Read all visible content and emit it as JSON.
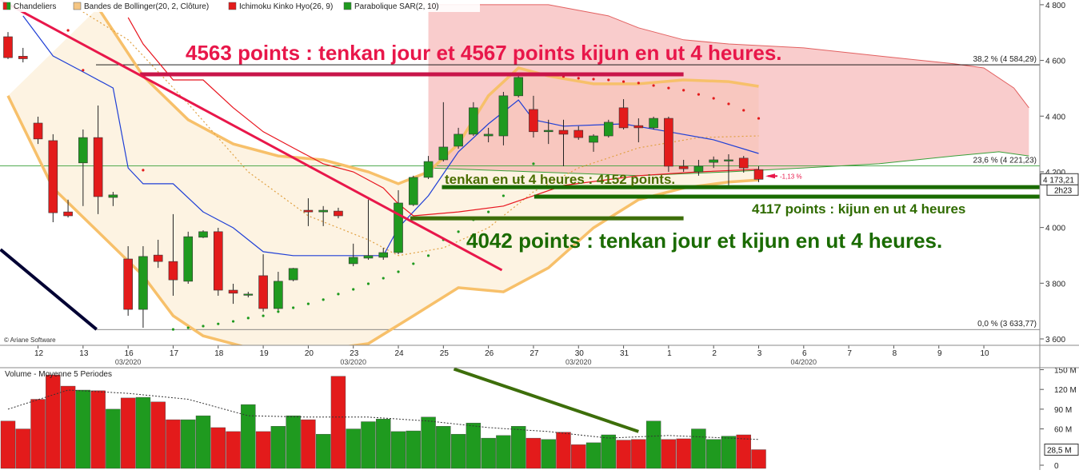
{
  "chart_data": [
    {
      "type": "candlestick",
      "legend": [
        {
          "name": "Chandeliers",
          "color": "#e31b1b"
        },
        {
          "name": "Bandes de Bollinger(20, 2, Clôture)",
          "color": "#f5c684"
        },
        {
          "name": "Ichimoku Kinko Hyo(26, 9)",
          "color": "#e31b1b"
        },
        {
          "name": "Parabolique SAR(2, 10)",
          "color": "#1f9a1f"
        }
      ],
      "copyright": "© Ariane Software",
      "categories": [
        null,
        null,
        "12",
        null,
        null,
        "13",
        null,
        null,
        "16",
        null,
        null,
        "17",
        null,
        null,
        "18",
        null,
        null,
        "19",
        null,
        null,
        "20",
        null,
        null,
        "23",
        null,
        null,
        "24",
        null,
        null,
        "25",
        null,
        null,
        "26",
        null,
        null,
        "27",
        null,
        null,
        "30",
        null,
        null,
        "31",
        null,
        null,
        "1",
        null,
        null,
        "2",
        null,
        null,
        "3",
        null,
        null,
        "6",
        null,
        null,
        "7",
        null,
        null,
        "8",
        null,
        null,
        "9",
        null,
        null,
        "10",
        null,
        null,
        null
      ],
      "month_labels": [
        {
          "category": 8,
          "label": "03/2020"
        },
        {
          "category": 23,
          "label": "03/2020"
        },
        {
          "category": 38,
          "label": "03/2020"
        },
        {
          "category": 53,
          "label": "04/2020"
        }
      ],
      "open": [
        4685,
        4615,
        4375,
        4312,
        4056,
        4232,
        4323,
        4108,
        3887,
        3706,
        3901,
        3878,
        3807,
        3965,
        3985,
        3775,
        3758,
        3827,
        3709,
        3812,
        4062,
        4056,
        4059,
        3870,
        3890,
        3893,
        3910,
        4082,
        4180,
        4243,
        4292,
        4335,
        4329,
        4329,
        4473,
        4424,
        4344,
        4349,
        4349,
        4306,
        4329,
        4430,
        4366,
        4358,
        4392,
        4220,
        4200,
        4234,
        4240,
        4249,
        4208,
        null,
        null,
        null,
        null,
        null,
        null,
        null,
        null,
        null,
        null,
        null,
        null,
        null,
        null,
        null,
        null,
        null,
        null
      ],
      "high": [
        4702,
        4645,
        4398,
        4335,
        4100,
        4352,
        4438,
        4128,
        3933,
        3933,
        3956,
        4048,
        3985,
        3990,
        3999,
        3798,
        3769,
        3904,
        3841,
        3855,
        4105,
        4077,
        4071,
        3942,
        4100,
        3927,
        4134,
        4186,
        4257,
        4450,
        4358,
        4450,
        4358,
        4487,
        4544,
        4473,
        4387,
        4387,
        4364,
        4335,
        4387,
        4461,
        4392,
        4398,
        4398,
        4243,
        4243,
        4255,
        4263,
        4257,
        4220,
        null,
        null,
        null,
        null,
        null,
        null,
        null,
        null,
        null,
        null,
        null,
        null,
        null,
        null,
        null,
        null,
        null,
        null
      ],
      "low": [
        4605,
        4593,
        4300,
        4019,
        4036,
        4077,
        4048,
        4077,
        3683,
        3640,
        3855,
        3755,
        3798,
        3962,
        3755,
        3726,
        3749,
        3698,
        3703,
        3807,
        4005,
        4005,
        4033,
        3861,
        3884,
        3884,
        3904,
        4077,
        4174,
        4237,
        4283,
        4329,
        4306,
        4295,
        4467,
        4323,
        4300,
        4220,
        4315,
        4272,
        4323,
        4352,
        4306,
        4352,
        4200,
        4200,
        4186,
        4214,
        4151,
        4197,
        4163,
        null,
        null,
        null,
        null,
        null,
        null,
        null,
        null,
        null,
        null,
        null,
        null,
        null,
        null,
        null,
        null,
        null,
        null
      ],
      "close": [
        4610,
        4606,
        4318,
        4053,
        4042,
        4323,
        4111,
        4117,
        3706,
        3896,
        3878,
        3812,
        3967,
        3985,
        3775,
        3764,
        3761,
        3709,
        3807,
        3853,
        4056,
        4062,
        4042,
        3893,
        3899,
        3910,
        4088,
        4180,
        4237,
        4289,
        4335,
        4430,
        4335,
        4473,
        4539,
        4344,
        4349,
        4335,
        4323,
        4329,
        4378,
        4358,
        4358,
        4392,
        4220,
        4211,
        4220,
        4243,
        4243,
        4214,
        4173.21,
        null,
        null,
        null,
        null,
        null,
        null,
        null,
        null,
        null,
        null,
        null,
        null,
        null,
        null,
        null,
        null,
        null,
        null
      ],
      "up_color": "#1f9a1f",
      "down_color": "#e31b1b",
      "ylim": [
        3577,
        4817
      ],
      "yticks": [
        {
          "value": 4800,
          "label": "4 800"
        },
        {
          "value": 4600,
          "label": "4 600"
        },
        {
          "value": 4400,
          "label": "4 400"
        },
        {
          "value": 4200,
          "label": "4 200"
        },
        {
          "value": 4000,
          "label": "4 000"
        },
        {
          "value": 3800,
          "label": "3 800"
        },
        {
          "value": 3600,
          "label": "3 600"
        }
      ],
      "last_price": {
        "value": 4173.21,
        "label": "4 173,21"
      },
      "timer": "2h23",
      "change_label": "-1,13 %",
      "fib_levels": [
        {
          "value": 4584.29,
          "label": "38,2 % (4 584,29)"
        },
        {
          "value": 4221.23,
          "label": "23,6 % (4 221,23)"
        },
        {
          "value": 3633.77,
          "label": "0,0 % (3 633,77)"
        }
      ],
      "bollinger": {
        "upper": {
          "x": [
            6,
            9,
            12,
            15,
            18,
            21,
            24,
            26,
            28,
            30,
            32,
            34,
            36,
            39,
            42,
            45,
            48,
            50
          ],
          "values": [
            4789,
            4544,
            4387,
            4300,
            4257,
            4243,
            4200,
            4157,
            4200,
            4300,
            4473,
            4573,
            4544,
            4516,
            4516,
            4530,
            4524,
            4507
          ]
        },
        "lower": {
          "x": [
            0,
            3,
            6,
            9,
            11,
            13,
            16,
            20,
            24,
            27,
            30,
            33,
            36,
            39,
            42,
            45,
            48,
            50
          ],
          "values": [
            4473,
            4142,
            3985,
            3827,
            3683,
            3611,
            3568,
            3554,
            3583,
            3683,
            3784,
            3769,
            3855,
            3999,
            4100,
            4142,
            4163,
            4171
          ]
        },
        "middle": {
          "x": [
            5,
            8,
            12,
            16,
            20,
            24,
            26,
            29,
            32,
            35,
            38,
            42,
            46,
            50
          ],
          "values": [
            4774,
            4674,
            4444,
            4200,
            4042,
            3956,
            3899,
            3927,
            3999,
            4128,
            4214,
            4286,
            4323,
            4329
          ]
        },
        "color": "#f7c06a"
      },
      "tenkan": {
        "x": [
          1,
          3,
          5,
          7,
          8,
          9,
          11,
          13,
          15,
          17,
          19,
          25,
          26,
          28,
          30,
          32,
          34,
          35,
          37,
          41,
          44,
          47,
          50
        ],
        "values": [
          4760,
          4616,
          4559,
          4501,
          4214,
          4157,
          4157,
          4056,
          3999,
          3913,
          3899,
          3899,
          3999,
          4114,
          4272,
          4372,
          4458,
          4387,
          4364,
          4372,
          4344,
          4315,
          4266
        ],
        "color": "#1f3fd6"
      },
      "kijun": {
        "x": [
          8,
          9,
          11,
          13,
          15,
          17,
          19,
          21,
          23,
          25,
          26,
          27,
          30,
          33,
          35,
          37,
          42,
          46,
          50
        ],
        "values": [
          4754,
          4659,
          4530,
          4530,
          4430,
          4344,
          4286,
          4229,
          4200,
          4142,
          4085,
          4042,
          4056,
          4077,
          4114,
          4151,
          4186,
          4200,
          4209
        ],
        "color": "#e8141e"
      },
      "cloud": {
        "span_b": {
          "x": [
            28,
            36,
            40,
            42,
            45,
            48,
            53,
            58,
            63,
            65,
            67,
            68
          ],
          "values": [
            4800,
            4800,
            4760,
            4717,
            4674,
            4659,
            4645,
            4616,
            4588,
            4573,
            4501,
            4430
          ]
        },
        "span_a": {
          "x": [
            28,
            35,
            42,
            48,
            53,
            58,
            63,
            66,
            68
          ],
          "values": [
            4214,
            4200,
            4186,
            4200,
            4214,
            4229,
            4257,
            4272,
            4257
          ]
        },
        "color": "#f4a3a3"
      },
      "sar": {
        "x": [
          4,
          5,
          9,
          11,
          12,
          13,
          14,
          15,
          16,
          17,
          18,
          19,
          20,
          21,
          22,
          23,
          24,
          25,
          26,
          27,
          28,
          29,
          30,
          31,
          32,
          33,
          34,
          35,
          37,
          38,
          39,
          40,
          41,
          42,
          43,
          44,
          45,
          46,
          47,
          48,
          49,
          50
        ],
        "values": [
          4708,
          4565,
          4206,
          3634,
          3640,
          3646,
          3654,
          3663,
          3675,
          3683,
          3698,
          3712,
          3726,
          3741,
          3761,
          3778,
          3798,
          3818,
          3841,
          3870,
          3899,
          3956,
          3985,
          4028,
          4056,
          4114,
          4171,
          4229,
          4542,
          4536,
          4533,
          4530,
          4524,
          4519,
          4510,
          4501,
          4493,
          4478,
          4464,
          4444,
          4421,
          4392
        ]
      },
      "trendlines": [
        {
          "x": [
            8.8,
            45
          ],
          "values": [
            4550,
            4550
          ],
          "color": "#c8154a",
          "width": 5
        },
        {
          "x": [
            -0.5,
            32.9
          ],
          "values": [
            4817,
            3847
          ],
          "color": "#e8174a",
          "width": 3
        },
        {
          "x": [
            28.9,
            68.7
          ],
          "values": [
            4145,
            4145
          ],
          "color": "#1a6b00",
          "width": 5
        },
        {
          "x": [
            35.05,
            68.7
          ],
          "values": [
            4111,
            4111
          ],
          "color": "#1a6b00",
          "width": 5
        },
        {
          "x": [
            26.8,
            45
          ],
          "values": [
            4033,
            4033
          ],
          "color": "#3d6e0a",
          "width": 5
        },
        {
          "x": [
            -0.5,
            5.9
          ],
          "values": [
            3921,
            3634
          ],
          "color": "#000033",
          "width": 4
        }
      ],
      "annotations": [
        {
          "text": "4563 points : tenkan jour et 4567 points kijun en ut 4 heures.",
          "color": "#e8174a",
          "size": 26
        },
        {
          "text": "tenkan en ut 4 heures : 4152 points.",
          "color": "#4a6e00",
          "size": 17
        },
        {
          "text": "4117 points : kijun en ut 4 heures",
          "color": "#2f6b00",
          "size": 17
        },
        {
          "text": "4042 points : tenkan jour et kijun en ut 4 heures.",
          "color": "#1a6b00",
          "size": 26
        }
      ]
    },
    {
      "type": "bar",
      "title": "Volume  - Moyenne 5 Periodes",
      "values": [
        72,
        60,
        105,
        142,
        125,
        119,
        118,
        90,
        107,
        108,
        101,
        74,
        74,
        80,
        62,
        56,
        97,
        56,
        64,
        80,
        74,
        52,
        140,
        60,
        71,
        75,
        56,
        57,
        78,
        64,
        52,
        69,
        46,
        50,
        64,
        46,
        44,
        55,
        36,
        39,
        51,
        43,
        44,
        72,
        44,
        45,
        60,
        44,
        49,
        51,
        28.5
      ],
      "ylim": [
        0,
        153
      ],
      "yticks": [
        {
          "value": 150,
          "label": "150 M"
        },
        {
          "value": 120,
          "label": "120 M"
        },
        {
          "value": 90,
          "label": "90 M"
        },
        {
          "value": 60,
          "label": "60 M"
        },
        0
      ],
      "last_label": {
        "value": 28.5,
        "label": "28,5 M"
      },
      "average": {
        "x": [
          0,
          4,
          8,
          12,
          16,
          20,
          24,
          28,
          32,
          36,
          40,
          44,
          48,
          50
        ],
        "values": [
          90,
          119,
          114,
          105,
          80,
          78,
          78,
          72,
          62,
          56,
          46,
          50,
          46,
          44
        ],
        "color": "#333333"
      },
      "trendlines": [
        {
          "x": [
            29.7,
            42
          ],
          "values": [
            151,
            56
          ],
          "color": "#3d6e0a",
          "width": 4
        }
      ]
    }
  ]
}
